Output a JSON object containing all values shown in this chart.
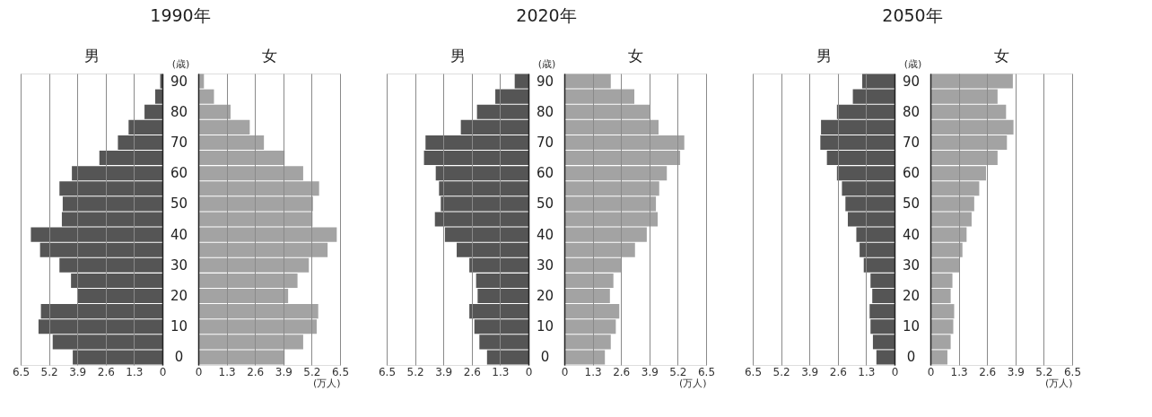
{
  "chart_data": [
    {
      "type": "bar",
      "orientation": "horizontal",
      "title": "1990年",
      "ylabel": "(歳)",
      "categories": [
        "90",
        null,
        "80",
        null,
        "70",
        null,
        "60",
        null,
        "50",
        null,
        "40",
        null,
        "30",
        null,
        "20",
        null,
        "10",
        null,
        "0"
      ],
      "series": [
        {
          "name": "男",
          "color": "#555555",
          "values": [
            0.1,
            0.33,
            0.82,
            1.55,
            2.04,
            2.89,
            4.15,
            4.72,
            4.57,
            4.61,
            6.03,
            5.61,
            4.72,
            4.19,
            3.89,
            5.57,
            5.68,
            5.03,
            4.11
          ]
        }
      ],
      "xlim": [
        6.5,
        0
      ],
      "xticks": [
        0,
        1.3,
        2.6,
        3.9,
        5.2,
        6.5
      ],
      "grid": "x"
    },
    {
      "type": "bar",
      "orientation": "horizontal",
      "xlabel": "(万人)",
      "categories": [
        "90",
        null,
        "80",
        null,
        "70",
        null,
        "60",
        null,
        "50",
        null,
        "40",
        null,
        "30",
        null,
        "20",
        null,
        "10",
        null,
        "0"
      ],
      "series": [
        {
          "name": "女",
          "color": "#a3a3a3",
          "values": [
            0.26,
            0.72,
            1.48,
            2.36,
            3.01,
            3.96,
            4.81,
            5.54,
            5.26,
            5.24,
            6.35,
            5.93,
            5.07,
            4.55,
            4.12,
            5.5,
            5.43,
            4.81,
            3.96
          ]
        }
      ],
      "xlim": [
        0,
        6.5
      ],
      "xticks": [
        0,
        1.3,
        2.6,
        3.9,
        5.2,
        6.5
      ],
      "grid": "x",
      "tick_labels": "x"
    },
    {
      "type": "bar",
      "orientation": "horizontal",
      "title": "2020年",
      "ylabel": "(歳)",
      "categories": [
        "90",
        null,
        "80",
        null,
        "70",
        null,
        "60",
        null,
        "50",
        null,
        "40",
        null,
        "30",
        null,
        "20",
        null,
        "10",
        null,
        "0"
      ],
      "series": [
        {
          "name": "男",
          "color": "#555555",
          "values": [
            0.63,
            1.52,
            2.36,
            3.1,
            4.72,
            4.79,
            4.25,
            4.1,
            4.02,
            4.29,
            3.83,
            3.29,
            2.71,
            2.4,
            2.33,
            2.71,
            2.48,
            2.25,
            1.9
          ]
        }
      ],
      "xlim": [
        6.5,
        0
      ],
      "xticks": [
        0,
        1.3,
        2.6,
        3.9,
        5.2,
        6.5
      ],
      "grid": "x"
    },
    {
      "type": "bar",
      "orientation": "horizontal",
      "xlabel": "(万人)",
      "categories": [
        "90",
        null,
        "80",
        null,
        "70",
        null,
        "60",
        null,
        "50",
        null,
        "40",
        null,
        "30",
        null,
        "20",
        null,
        "10",
        null,
        "0"
      ],
      "series": [
        {
          "name": "女",
          "color": "#a3a3a3",
          "values": [
            2.13,
            3.21,
            3.93,
            4.32,
            5.5,
            5.31,
            4.7,
            4.35,
            4.2,
            4.28,
            3.78,
            3.24,
            2.63,
            2.25,
            2.09,
            2.52,
            2.36,
            2.13,
            1.86
          ]
        }
      ],
      "xlim": [
        0,
        6.5
      ],
      "xticks": [
        0,
        1.3,
        2.6,
        3.9,
        5.2,
        6.5
      ],
      "grid": "x",
      "tick_labels": "x"
    },
    {
      "type": "bar",
      "orientation": "horizontal",
      "title": "2050年",
      "ylabel": "(歳)",
      "categories": [
        "90",
        null,
        "80",
        null,
        "70",
        null,
        "60",
        null,
        "50",
        null,
        "40",
        null,
        "30",
        null,
        "20",
        null,
        "10",
        null,
        "0"
      ],
      "series": [
        {
          "name": "男",
          "color": "#555555",
          "values": [
            1.48,
            1.91,
            2.64,
            3.37,
            3.4,
            3.1,
            2.64,
            2.41,
            2.25,
            2.14,
            1.75,
            1.6,
            1.41,
            1.1,
            1.02,
            1.14,
            1.1,
            0.99,
            0.83
          ]
        }
      ],
      "xlim": [
        6.5,
        0
      ],
      "xticks": [
        0,
        1.3,
        2.6,
        3.9,
        5.2,
        6.5
      ],
      "grid": "x"
    },
    {
      "type": "bar",
      "orientation": "horizontal",
      "xlabel": "(万人)",
      "categories": [
        "90",
        null,
        "80",
        null,
        "70",
        null,
        "60",
        null,
        "50",
        null,
        "40",
        null,
        "30",
        null,
        "20",
        null,
        "10",
        null,
        "0"
      ],
      "series": [
        {
          "name": "女",
          "color": "#a3a3a3",
          "values": [
            3.78,
            3.08,
            3.47,
            3.81,
            3.51,
            3.08,
            2.55,
            2.24,
            2.01,
            1.89,
            1.66,
            1.47,
            1.32,
            1.01,
            0.93,
            1.09,
            1.05,
            0.93,
            0.78
          ]
        }
      ],
      "xlim": [
        0,
        6.5
      ],
      "xticks": [
        0,
        1.3,
        2.6,
        3.9,
        5.2,
        6.5
      ],
      "grid": "x",
      "tick_labels": "x"
    }
  ]
}
